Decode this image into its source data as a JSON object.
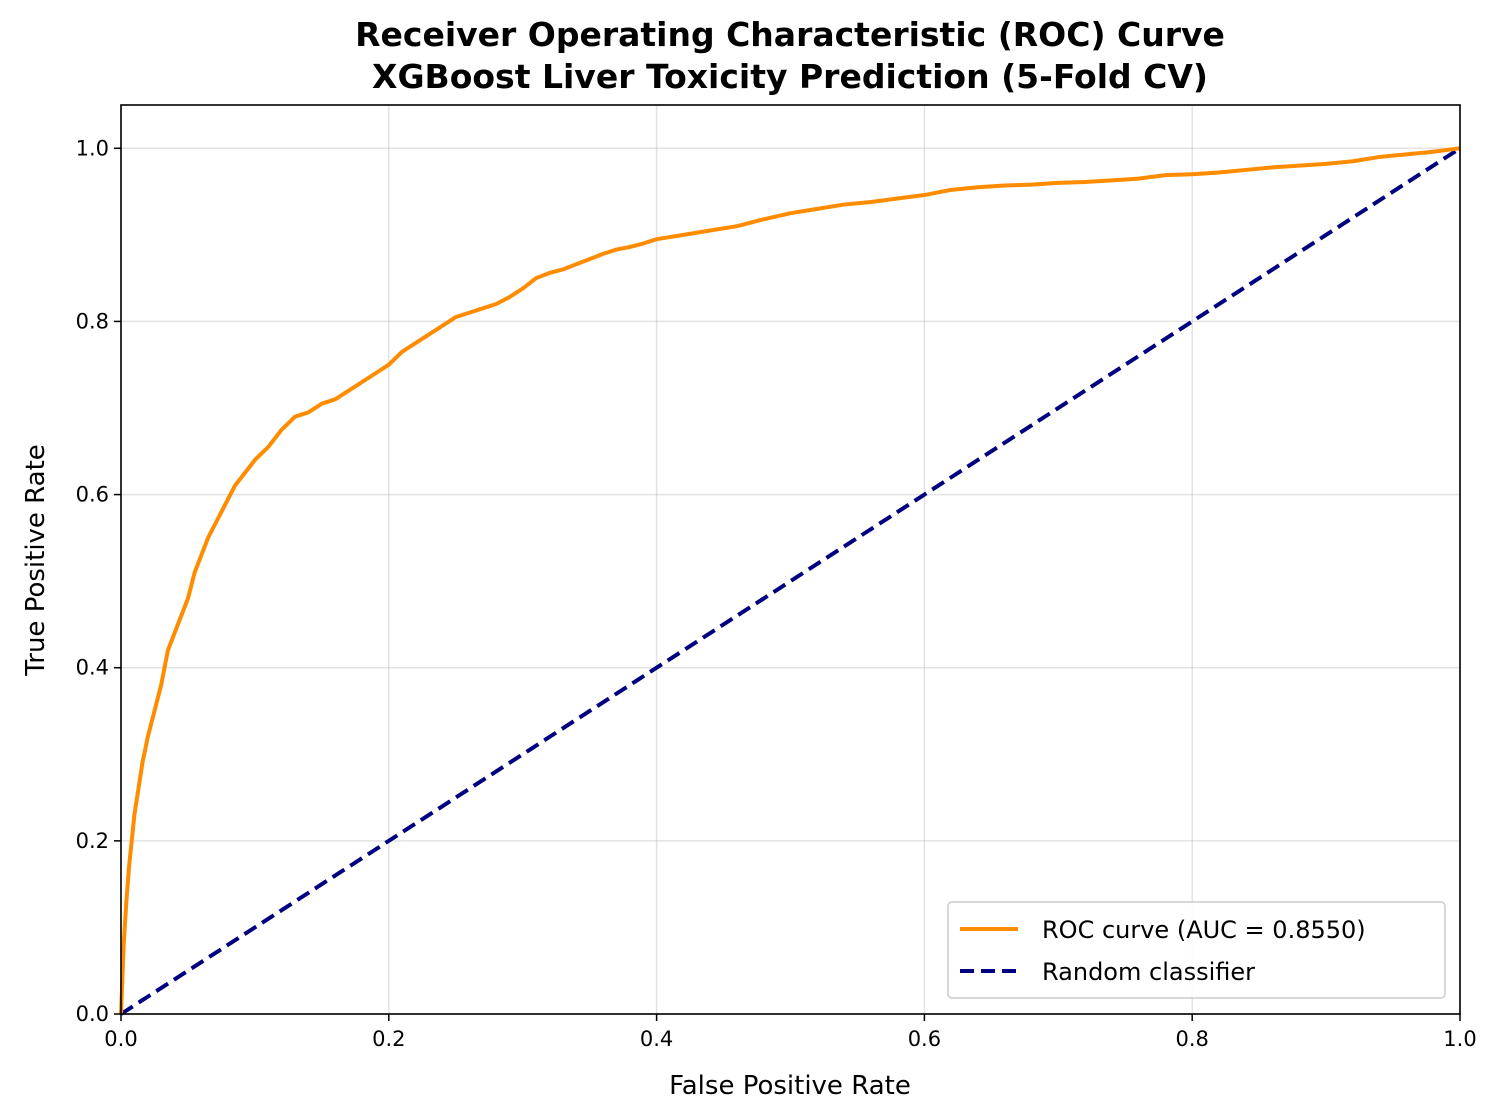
{
  "chart_data": {
    "type": "line",
    "title": [
      "Receiver Operating Characteristic (ROC) Curve",
      "XGBoost Liver Toxicity Prediction (5-Fold CV)"
    ],
    "xlabel": "False Positive Rate",
    "ylabel": "True Positive Rate",
    "xlim": [
      0.0,
      1.0
    ],
    "ylim": [
      0.0,
      1.05
    ],
    "x_ticks": [
      "0.0",
      "0.2",
      "0.4",
      "0.6",
      "0.8",
      "1.0"
    ],
    "y_ticks": [
      "0.0",
      "0.2",
      "0.4",
      "0.6",
      "0.8",
      "1.0"
    ],
    "grid": true,
    "legend_position": "lower-right",
    "series": [
      {
        "name": "ROC curve (AUC = 0.8550)",
        "color": "#ff8c00",
        "style": "solid",
        "x": [
          0.0,
          0.002,
          0.004,
          0.006,
          0.008,
          0.01,
          0.013,
          0.016,
          0.02,
          0.025,
          0.03,
          0.035,
          0.04,
          0.045,
          0.05,
          0.055,
          0.06,
          0.065,
          0.07,
          0.075,
          0.08,
          0.085,
          0.09,
          0.095,
          0.1,
          0.11,
          0.12,
          0.13,
          0.14,
          0.15,
          0.16,
          0.17,
          0.18,
          0.19,
          0.2,
          0.21,
          0.22,
          0.23,
          0.24,
          0.25,
          0.26,
          0.27,
          0.28,
          0.29,
          0.3,
          0.31,
          0.32,
          0.33,
          0.34,
          0.35,
          0.36,
          0.37,
          0.38,
          0.39,
          0.4,
          0.42,
          0.44,
          0.46,
          0.48,
          0.5,
          0.52,
          0.54,
          0.56,
          0.58,
          0.6,
          0.62,
          0.64,
          0.66,
          0.68,
          0.7,
          0.72,
          0.74,
          0.76,
          0.78,
          0.8,
          0.82,
          0.84,
          0.86,
          0.88,
          0.9,
          0.92,
          0.94,
          0.96,
          0.98,
          1.0
        ],
        "y": [
          0.0,
          0.08,
          0.13,
          0.17,
          0.2,
          0.23,
          0.26,
          0.29,
          0.32,
          0.35,
          0.38,
          0.42,
          0.44,
          0.46,
          0.48,
          0.51,
          0.53,
          0.55,
          0.565,
          0.58,
          0.595,
          0.61,
          0.62,
          0.63,
          0.64,
          0.655,
          0.675,
          0.69,
          0.695,
          0.705,
          0.71,
          0.72,
          0.73,
          0.74,
          0.75,
          0.765,
          0.775,
          0.785,
          0.795,
          0.805,
          0.81,
          0.815,
          0.82,
          0.828,
          0.838,
          0.85,
          0.856,
          0.86,
          0.866,
          0.872,
          0.878,
          0.883,
          0.886,
          0.89,
          0.895,
          0.9,
          0.905,
          0.91,
          0.918,
          0.925,
          0.93,
          0.935,
          0.938,
          0.942,
          0.946,
          0.952,
          0.955,
          0.957,
          0.958,
          0.96,
          0.961,
          0.963,
          0.965,
          0.969,
          0.97,
          0.972,
          0.975,
          0.978,
          0.98,
          0.982,
          0.985,
          0.99,
          0.993,
          0.996,
          1.0
        ]
      },
      {
        "name": "Random classifier",
        "color": "#000080",
        "style": "dashed",
        "x": [
          0.0,
          1.0
        ],
        "y": [
          0.0,
          1.0
        ]
      }
    ]
  }
}
